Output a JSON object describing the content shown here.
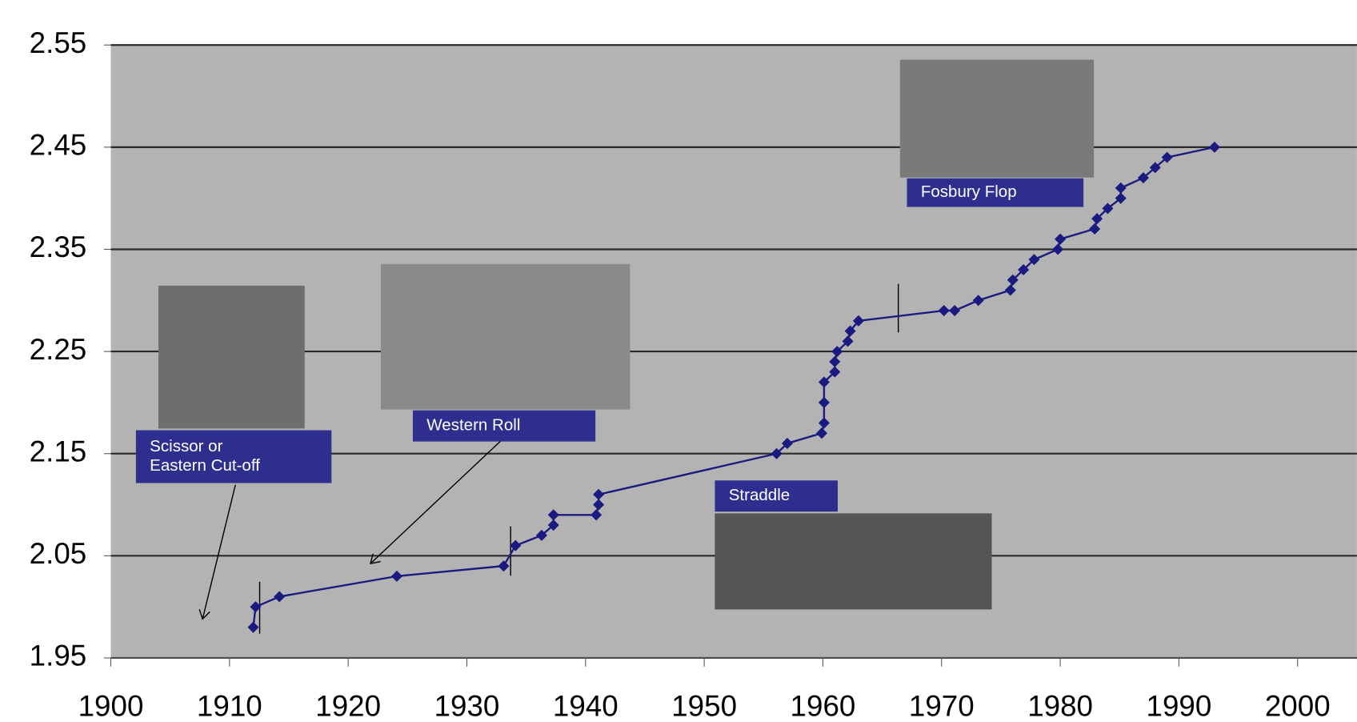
{
  "chart_data": {
    "type": "line",
    "x": [
      1912.0,
      1912.2,
      1914.2,
      1924.1,
      1933.1,
      1934.1,
      1936.3,
      1937.3,
      1937.3,
      1940.9,
      1941.1,
      1941.1,
      1956.1,
      1957.0,
      1959.9,
      1960.1,
      1960.1,
      1960.1,
      1961.0,
      1961.0,
      1961.2,
      1962.1,
      1962.3,
      1963.0,
      1970.2,
      1971.1,
      1973.1,
      1975.8,
      1976.0,
      1976.9,
      1977.8,
      1979.8,
      1980.0,
      1982.9,
      1983.1,
      1984.0,
      1985.1,
      1985.1,
      1987.0,
      1988.0,
      1989.0,
      1993.0
    ],
    "series": [
      {
        "color": "#1a1a80",
        "values": [
          1.98,
          2.0,
          2.01,
          2.03,
          2.04,
          2.06,
          2.07,
          2.08,
          2.09,
          2.09,
          2.1,
          2.11,
          2.15,
          2.16,
          2.17,
          2.18,
          2.2,
          2.22,
          2.23,
          2.24,
          2.25,
          2.26,
          2.27,
          2.28,
          2.29,
          2.29,
          2.3,
          2.31,
          2.32,
          2.33,
          2.34,
          2.35,
          2.36,
          2.37,
          2.38,
          2.39,
          2.4,
          2.41,
          2.42,
          2.43,
          2.44,
          2.45
        ]
      }
    ],
    "xlim": [
      1900,
      2005
    ],
    "xticks": [
      1900,
      1910,
      1920,
      1930,
      1940,
      1950,
      1960,
      1970,
      1980,
      1990,
      2000
    ],
    "ylim": [
      1.95,
      2.55
    ],
    "yticks": [
      1.95,
      2.05,
      2.15,
      2.25,
      2.35,
      2.45,
      2.55
    ],
    "grid": true,
    "annotations": [
      [
        "Scissor  or",
        "Eastern Cut-off"
      ],
      [
        "Western Roll"
      ],
      [
        "Straddle"
      ],
      [
        "Fosbury Flop"
      ]
    ]
  }
}
